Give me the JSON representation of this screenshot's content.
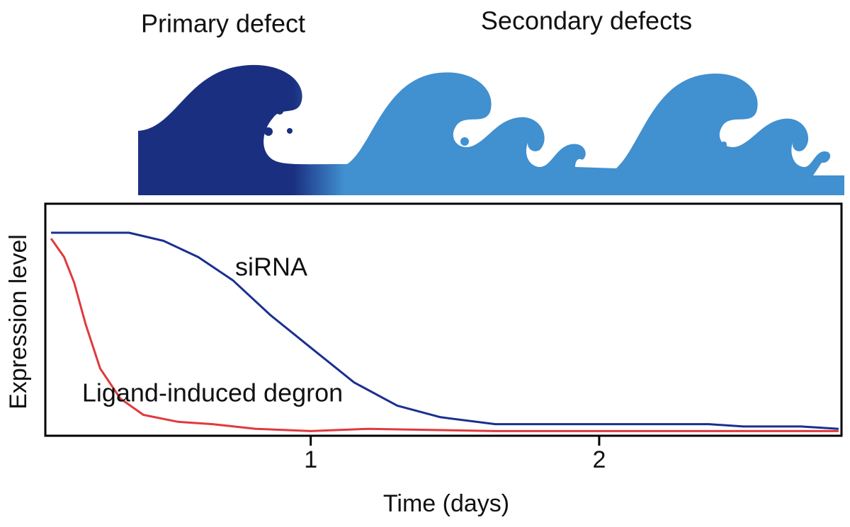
{
  "chart_data": {
    "type": "line",
    "headings": [
      "Primary defect",
      "Secondary defects"
    ],
    "xlabel": "Time (days)",
    "ylabel": "Expression level",
    "xlim": [
      0.08,
      2.84
    ],
    "ylim": [
      0,
      1
    ],
    "xticks": [
      1,
      2
    ],
    "series": [
      {
        "name": "siRNA",
        "color": "#1a2f8f",
        "x": [
          0.1,
          0.37,
          0.49,
          0.61,
          0.73,
          0.86,
          1.0,
          1.15,
          1.3,
          1.45,
          1.64,
          1.89,
          2.14,
          2.38,
          2.5,
          2.7,
          2.83
        ],
        "values": [
          0.875,
          0.875,
          0.84,
          0.77,
          0.67,
          0.52,
          0.38,
          0.23,
          0.13,
          0.08,
          0.05,
          0.05,
          0.05,
          0.05,
          0.04,
          0.04,
          0.03
        ]
      },
      {
        "name": "Ligand-induced degron",
        "color": "#e0393e",
        "x": [
          0.1,
          0.145,
          0.18,
          0.22,
          0.27,
          0.34,
          0.42,
          0.54,
          0.66,
          0.81,
          1.0,
          1.2,
          1.64,
          2.14,
          2.83
        ],
        "values": [
          0.85,
          0.77,
          0.66,
          0.48,
          0.29,
          0.16,
          0.09,
          0.06,
          0.05,
          0.03,
          0.02,
          0.03,
          0.02,
          0.02,
          0.02
        ]
      }
    ]
  }
}
